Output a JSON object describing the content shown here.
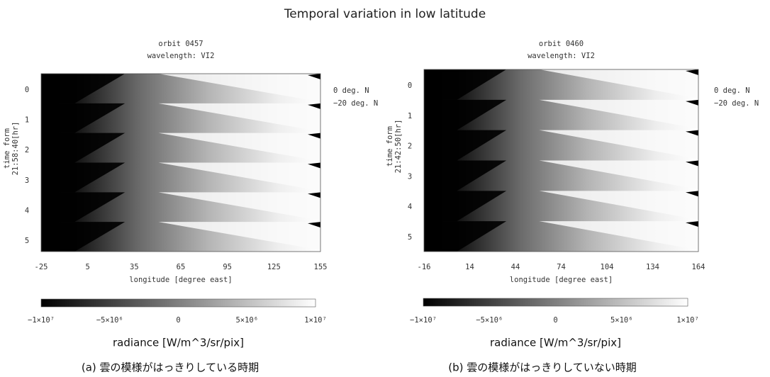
{
  "title": "Temporal variation in low latitude",
  "panels": [
    {
      "title": [
        "orbit 0457",
        "wavelength: VI2"
      ],
      "ylabel": [
        "time form",
        "21:58:40[hr]"
      ],
      "yticks": [
        0,
        1,
        2,
        3,
        4,
        5
      ],
      "xticks": [
        -25,
        5,
        35,
        65,
        95,
        125,
        155
      ],
      "xlabel": "longitude [degree east]",
      "legend": [
        "0 deg. N",
        "−20 deg. N"
      ],
      "colorbar_ticks": [
        "−1×10⁷",
        "−5×10⁶",
        "0",
        "5×10⁶",
        "1×10⁷"
      ],
      "colorbar_label": "radiance [W/m^3/sr/pix]",
      "caption": "(a) 雲の模様がはっきりしている時期"
    },
    {
      "title": [
        "orbit 0460",
        "wavelength: VI2"
      ],
      "ylabel": [
        "time form",
        "21:42:50[hr]"
      ],
      "yticks": [
        0,
        1,
        2,
        3,
        4,
        5
      ],
      "xticks": [
        -16,
        14,
        44,
        74,
        104,
        134,
        164
      ],
      "xlabel": "longitude [degree east]",
      "legend": [
        "0 deg. N",
        "−20 deg. N"
      ],
      "colorbar_ticks": [
        "−1×10⁷",
        "−5×10⁶",
        "0",
        "5×10⁶",
        "1×10⁷"
      ],
      "colorbar_label": "radiance [W/m^3/sr/pix]",
      "caption": "(b) 雲の模様がはっきりしていない時期"
    }
  ]
}
